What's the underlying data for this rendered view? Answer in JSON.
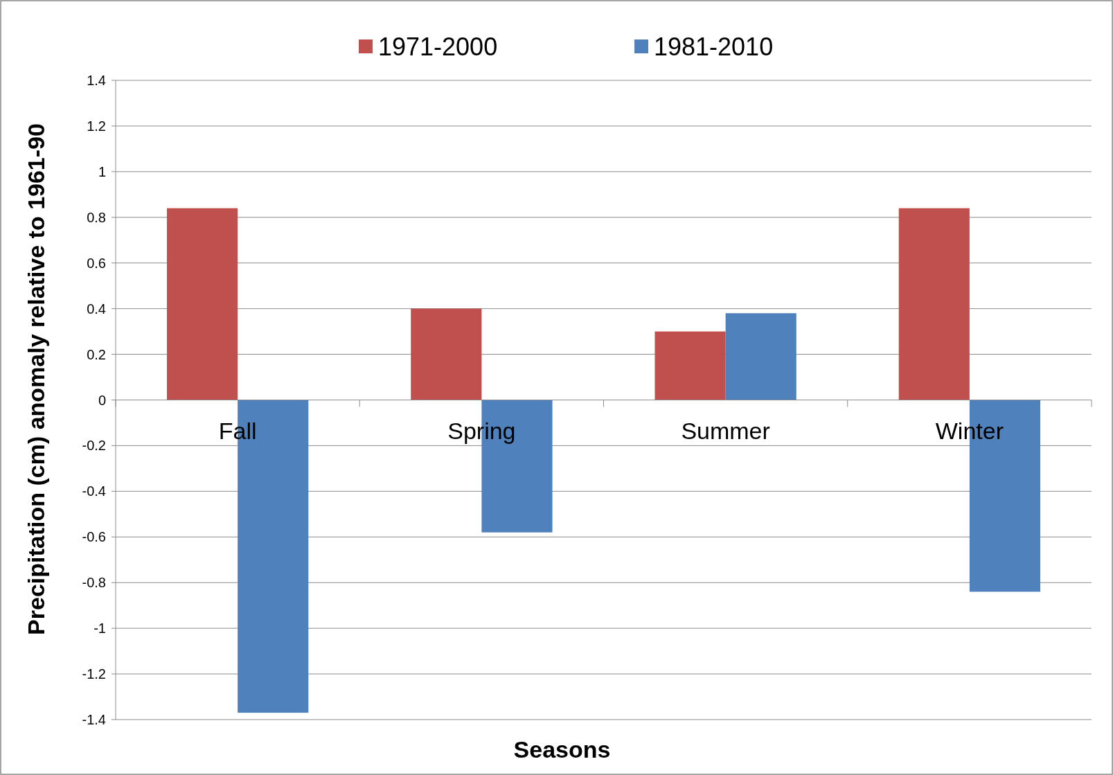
{
  "chart_data": {
    "type": "bar",
    "xlabel": "Seasons",
    "ylabel": "Precipitation (cm) anomaly relative to 1961-90",
    "categories": [
      "Fall",
      "Spring",
      "Summer",
      "Winter"
    ],
    "series": [
      {
        "name": "1971-2000",
        "color": "#c0504d",
        "values": [
          0.84,
          0.4,
          0.3,
          0.84
        ]
      },
      {
        "name": "1981-2010",
        "color": "#4f81bd",
        "values": [
          -1.37,
          -0.58,
          0.38,
          -0.84
        ]
      }
    ],
    "ylim": [
      -1.4,
      1.4
    ],
    "yticks": [
      1.4,
      1.2,
      1,
      0.8,
      0.6,
      0.4,
      0.2,
      0,
      -0.2,
      -0.4,
      -0.6,
      -0.8,
      -1,
      -1.2,
      -1.4
    ],
    "grid": "y",
    "legend": "top"
  }
}
